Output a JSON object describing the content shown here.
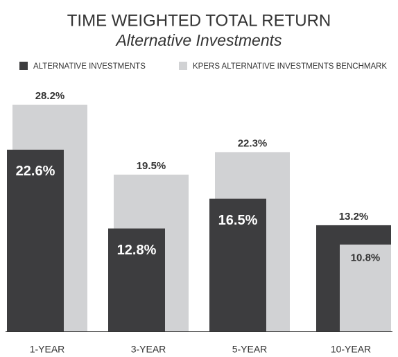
{
  "chart_data": {
    "type": "bar",
    "title": "TIME WEIGHTED TOTAL RETURN",
    "subtitle": "Alternative Investments",
    "categories": [
      "1-YEAR",
      "3-YEAR",
      "5-YEAR",
      "10-YEAR"
    ],
    "series": [
      {
        "name": "ALTERNATIVE INVESTMENTS",
        "color": "#3d3d3f",
        "values": [
          22.6,
          12.8,
          16.5,
          13.2
        ],
        "value_labels": [
          "22.6%",
          "12.8%",
          "16.5%",
          "13.2%"
        ]
      },
      {
        "name": "KPERS ALTERNATIVE INVESTMENTS BENCHMARK",
        "color": "#d1d2d4",
        "values": [
          28.2,
          19.5,
          22.3,
          10.8
        ],
        "value_labels": [
          "28.2%",
          "19.5%",
          "22.3%",
          "10.8%"
        ]
      }
    ]
  }
}
